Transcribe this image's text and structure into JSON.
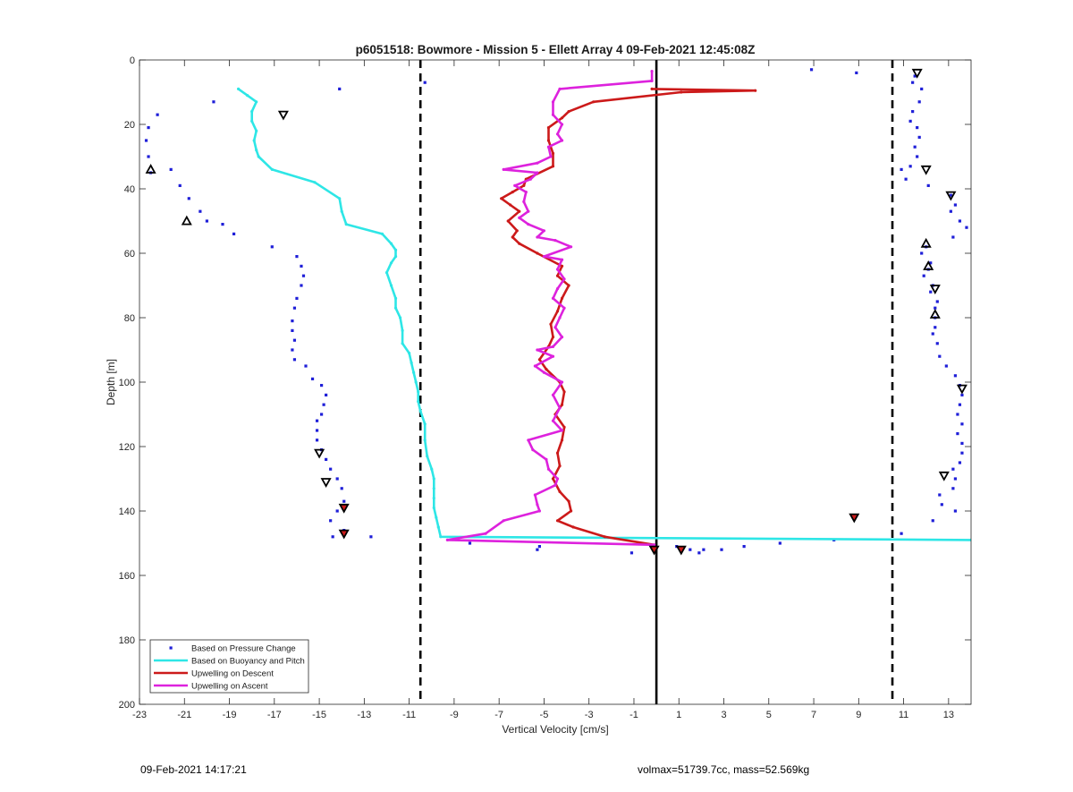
{
  "chart_data": {
    "type": "line",
    "title": "p6051518: Bowmore - Mission 5 - Ellett Array 4 09-Feb-2021 12:45:08Z",
    "xlabel": "Vertical Velocity [cm/s]",
    "ylabel": "Depth [m]",
    "xlim": [
      -23,
      14
    ],
    "ylim": [
      0,
      200
    ],
    "y_reversed": true,
    "grid": false,
    "legend_position": "bottom-left",
    "xticks": [
      "-23",
      "-21",
      "-19",
      "-17",
      "-15",
      "-13",
      "-11",
      "-9",
      "-7",
      "-5",
      "-3",
      "-1",
      "1",
      "3",
      "5",
      "7",
      "9",
      "11",
      "13"
    ],
    "yticks": [
      "0",
      "20",
      "40",
      "60",
      "80",
      "100",
      "120",
      "140",
      "160",
      "180",
      "200"
    ],
    "reference_lines": [
      {
        "x": -10.5,
        "style": "dashed",
        "color": "#000000"
      },
      {
        "x": 10.5,
        "style": "dashed",
        "color": "#000000"
      },
      {
        "x": 0,
        "style": "solid",
        "color": "#000000"
      }
    ],
    "series": [
      {
        "name": "Based on Pressure Change",
        "kind": "points",
        "color": "#1f1fd8",
        "points": [
          [
            -22.2,
            17
          ],
          [
            -22.6,
            21
          ],
          [
            -22.7,
            25
          ],
          [
            -22.6,
            30
          ],
          [
            -22.5,
            35
          ],
          [
            -21.6,
            34
          ],
          [
            -21.2,
            39
          ],
          [
            -20.8,
            43
          ],
          [
            -20.3,
            47
          ],
          [
            -20,
            50
          ],
          [
            -19.3,
            51
          ],
          [
            -18.8,
            54
          ],
          [
            -17.1,
            58
          ],
          [
            -16,
            61
          ],
          [
            -15.8,
            64
          ],
          [
            -15.7,
            67
          ],
          [
            -15.8,
            70
          ],
          [
            -16,
            74
          ],
          [
            -16.1,
            77
          ],
          [
            -16.2,
            81
          ],
          [
            -16.2,
            84
          ],
          [
            -16.1,
            87
          ],
          [
            -16.2,
            90
          ],
          [
            -16.1,
            93
          ],
          [
            -15.6,
            95
          ],
          [
            -15.3,
            99
          ],
          [
            -14.9,
            101
          ],
          [
            -14.7,
            104
          ],
          [
            -14.8,
            107
          ],
          [
            -14.9,
            110
          ],
          [
            -15.1,
            112
          ],
          [
            -15.1,
            115
          ],
          [
            -15.1,
            118
          ],
          [
            -14.9,
            121
          ],
          [
            -14.7,
            124
          ],
          [
            -14.5,
            127
          ],
          [
            -14.2,
            130
          ],
          [
            -14,
            133
          ],
          [
            -13.9,
            137
          ],
          [
            -14.2,
            140
          ],
          [
            -14.5,
            143
          ],
          [
            -13.9,
            146
          ],
          [
            -14.4,
            148
          ],
          [
            -12.7,
            148
          ],
          [
            -19.7,
            13
          ],
          [
            -14.1,
            9
          ],
          [
            -10.3,
            7
          ],
          [
            -8.3,
            150
          ],
          [
            -5.2,
            151
          ],
          [
            -5.3,
            152
          ],
          [
            -1.1,
            153
          ],
          [
            0.9,
            151
          ],
          [
            1.5,
            152
          ],
          [
            1.9,
            153
          ],
          [
            2.1,
            152
          ],
          [
            2.9,
            152
          ],
          [
            3.9,
            151
          ],
          [
            5.5,
            150
          ],
          [
            7.9,
            149
          ],
          [
            10.9,
            147
          ],
          [
            6.9,
            3
          ],
          [
            8.9,
            4
          ],
          [
            11.5,
            5
          ],
          [
            11.4,
            7
          ],
          [
            11.8,
            9
          ],
          [
            11.7,
            13
          ],
          [
            11.4,
            16
          ],
          [
            11.3,
            19
          ],
          [
            11.6,
            21
          ],
          [
            11.7,
            24
          ],
          [
            11.5,
            27
          ],
          [
            11.6,
            30
          ],
          [
            11.3,
            33
          ],
          [
            10.9,
            34
          ],
          [
            11.1,
            37
          ],
          [
            12.1,
            39
          ],
          [
            13.1,
            42
          ],
          [
            13.3,
            45
          ],
          [
            13.1,
            47
          ],
          [
            13.5,
            50
          ],
          [
            13.8,
            52
          ],
          [
            13.2,
            55
          ],
          [
            12,
            58
          ],
          [
            11.8,
            60
          ],
          [
            12.2,
            63
          ],
          [
            12.1,
            65
          ],
          [
            11.9,
            67
          ],
          [
            12.3,
            70
          ],
          [
            12.2,
            72
          ],
          [
            12.5,
            75
          ],
          [
            12.4,
            77
          ],
          [
            12.4,
            80
          ],
          [
            12.4,
            83
          ],
          [
            12.3,
            85
          ],
          [
            12.5,
            88
          ],
          [
            12.6,
            92
          ],
          [
            12.9,
            95
          ],
          [
            13.3,
            98
          ],
          [
            13.5,
            101
          ],
          [
            13.6,
            104
          ],
          [
            13.5,
            107
          ],
          [
            13.4,
            110
          ],
          [
            13.6,
            113
          ],
          [
            13.4,
            116
          ],
          [
            13.6,
            119
          ],
          [
            13.6,
            122
          ],
          [
            13.5,
            125
          ],
          [
            13.2,
            127
          ],
          [
            13.3,
            130
          ],
          [
            13.2,
            133
          ],
          [
            12.6,
            135
          ],
          [
            12.7,
            138
          ],
          [
            13.3,
            140
          ],
          [
            12.3,
            143
          ]
        ]
      },
      {
        "name": "Based on Buoyancy and Pitch",
        "kind": "line",
        "color": "#2ee6e6",
        "points": [
          [
            -18.6,
            9
          ],
          [
            -18.2,
            11
          ],
          [
            -17.8,
            13
          ],
          [
            -18,
            16
          ],
          [
            -18,
            19
          ],
          [
            -17.8,
            22
          ],
          [
            -17.9,
            25
          ],
          [
            -17.8,
            28
          ],
          [
            -17.7,
            30
          ],
          [
            -17.1,
            34
          ],
          [
            -15.2,
            38
          ],
          [
            -14.1,
            43
          ],
          [
            -14,
            47
          ],
          [
            -13.8,
            51
          ],
          [
            -12.2,
            54
          ],
          [
            -11.8,
            57
          ],
          [
            -11.6,
            59
          ],
          [
            -11.6,
            61
          ],
          [
            -11.8,
            63
          ],
          [
            -12,
            66
          ],
          [
            -11.8,
            70
          ],
          [
            -11.6,
            74
          ],
          [
            -11.6,
            77
          ],
          [
            -11.4,
            80
          ],
          [
            -11.3,
            84
          ],
          [
            -11.3,
            88
          ],
          [
            -11,
            91
          ],
          [
            -10.9,
            94
          ],
          [
            -10.8,
            97
          ],
          [
            -10.7,
            100
          ],
          [
            -10.6,
            103
          ],
          [
            -10.6,
            106
          ],
          [
            -10.5,
            109
          ],
          [
            -10.3,
            113
          ],
          [
            -10.3,
            118
          ],
          [
            -10.2,
            123
          ],
          [
            -10,
            127
          ],
          [
            -9.9,
            130
          ],
          [
            -9.9,
            133
          ],
          [
            -9.9,
            136
          ],
          [
            -9.9,
            139
          ],
          [
            -9.8,
            142
          ],
          [
            -9.7,
            145
          ],
          [
            -9.6,
            148
          ],
          [
            14,
            149
          ]
        ]
      },
      {
        "name": "Upwelling on Descent",
        "kind": "line",
        "color": "#cc1a1a",
        "points": [
          [
            -0.2,
            9
          ],
          [
            4.4,
            9.5
          ],
          [
            1.1,
            10
          ],
          [
            -2.8,
            13
          ],
          [
            -3.9,
            16
          ],
          [
            -4.2,
            18
          ],
          [
            -4.8,
            21
          ],
          [
            -4.8,
            25
          ],
          [
            -4.6,
            29
          ],
          [
            -4.6,
            33
          ],
          [
            -5.8,
            37
          ],
          [
            -5.9,
            39
          ],
          [
            -6.4,
            41
          ],
          [
            -6.9,
            43
          ],
          [
            -6.5,
            45
          ],
          [
            -6.1,
            47
          ],
          [
            -6.6,
            50
          ],
          [
            -6.2,
            53
          ],
          [
            -6.4,
            55
          ],
          [
            -6.1,
            57
          ],
          [
            -5.3,
            60
          ],
          [
            -4.2,
            64
          ],
          [
            -4.4,
            67
          ],
          [
            -3.9,
            70
          ],
          [
            -4.2,
            74
          ],
          [
            -4.4,
            78
          ],
          [
            -4.7,
            82
          ],
          [
            -4.6,
            86
          ],
          [
            -4.8,
            89
          ],
          [
            -5.2,
            93
          ],
          [
            -4.9,
            96
          ],
          [
            -4.3,
            100
          ],
          [
            -4.1,
            103
          ],
          [
            -4.2,
            107
          ],
          [
            -4.5,
            110
          ],
          [
            -4.1,
            114
          ],
          [
            -4.2,
            118
          ],
          [
            -4.4,
            122
          ],
          [
            -4.3,
            126
          ],
          [
            -4.6,
            130
          ],
          [
            -4.3,
            134
          ],
          [
            -3.9,
            137
          ],
          [
            -3.8,
            140
          ],
          [
            -4.4,
            143
          ],
          [
            -3.7,
            145
          ],
          [
            -2.3,
            148
          ],
          [
            -0.1,
            150.5
          ]
        ]
      },
      {
        "name": "Upwelling on Ascent",
        "kind": "line",
        "color": "#dd22dd",
        "points": [
          [
            -0.2,
            3.5
          ],
          [
            -0.2,
            6.5
          ],
          [
            -4.3,
            9
          ],
          [
            -4.6,
            13
          ],
          [
            -4.6,
            17
          ],
          [
            -4.2,
            20
          ],
          [
            -4.4,
            23
          ],
          [
            -4.2,
            25
          ],
          [
            -4.8,
            27
          ],
          [
            -4.7,
            30
          ],
          [
            -5.3,
            32
          ],
          [
            -6.8,
            34
          ],
          [
            -5.3,
            35
          ],
          [
            -5.6,
            37
          ],
          [
            -6.3,
            39
          ],
          [
            -5.8,
            41
          ],
          [
            -5.9,
            44
          ],
          [
            -5.7,
            47
          ],
          [
            -6.1,
            49
          ],
          [
            -5.7,
            51
          ],
          [
            -5,
            53
          ],
          [
            -5.3,
            55
          ],
          [
            -4.5,
            56
          ],
          [
            -3.8,
            58
          ],
          [
            -5,
            61
          ],
          [
            -4.2,
            62
          ],
          [
            -4.4,
            65
          ],
          [
            -4.1,
            68
          ],
          [
            -4.4,
            71
          ],
          [
            -4.6,
            74
          ],
          [
            -4.1,
            77
          ],
          [
            -4.3,
            80
          ],
          [
            -4.5,
            83
          ],
          [
            -4.2,
            86
          ],
          [
            -4.6,
            89
          ],
          [
            -5.3,
            90
          ],
          [
            -4.6,
            92
          ],
          [
            -5.4,
            95
          ],
          [
            -5,
            97
          ],
          [
            -4.2,
            100
          ],
          [
            -4.6,
            104
          ],
          [
            -4.3,
            108
          ],
          [
            -4.6,
            112
          ],
          [
            -4.2,
            115
          ],
          [
            -5.7,
            118
          ],
          [
            -5.5,
            121
          ],
          [
            -4.9,
            124
          ],
          [
            -4.8,
            127
          ],
          [
            -4.4,
            130
          ],
          [
            -4.5,
            132
          ],
          [
            -5.4,
            135
          ],
          [
            -5.3,
            138
          ],
          [
            -5.2,
            140
          ],
          [
            -6.8,
            143
          ],
          [
            -7.6,
            147
          ],
          [
            -9.3,
            149
          ],
          [
            -0.1,
            150.5
          ]
        ]
      }
    ],
    "markers": [
      {
        "shape": "tri-down",
        "points": [
          [
            -16.6,
            17
          ],
          [
            11.6,
            4
          ],
          [
            12,
            34
          ],
          [
            13.1,
            42
          ],
          [
            12.4,
            71
          ],
          [
            13.6,
            102
          ],
          [
            12.8,
            129
          ],
          [
            -15,
            122
          ],
          [
            -14.7,
            131
          ]
        ]
      },
      {
        "shape": "tri-up",
        "points": [
          [
            -22.5,
            34
          ],
          [
            -20.9,
            50
          ],
          [
            12,
            57
          ],
          [
            12.1,
            64
          ],
          [
            12.4,
            79
          ]
        ]
      },
      {
        "shape": "tri-filled",
        "points": [
          [
            -13.9,
            139
          ],
          [
            -13.9,
            147
          ],
          [
            8.8,
            142
          ],
          [
            -0.1,
            152
          ],
          [
            1.1,
            152
          ]
        ]
      }
    ]
  },
  "footer": {
    "left": "09-Feb-2021 14:17:21",
    "right": "volmax=51739.7cc, mass=52.569kg"
  }
}
